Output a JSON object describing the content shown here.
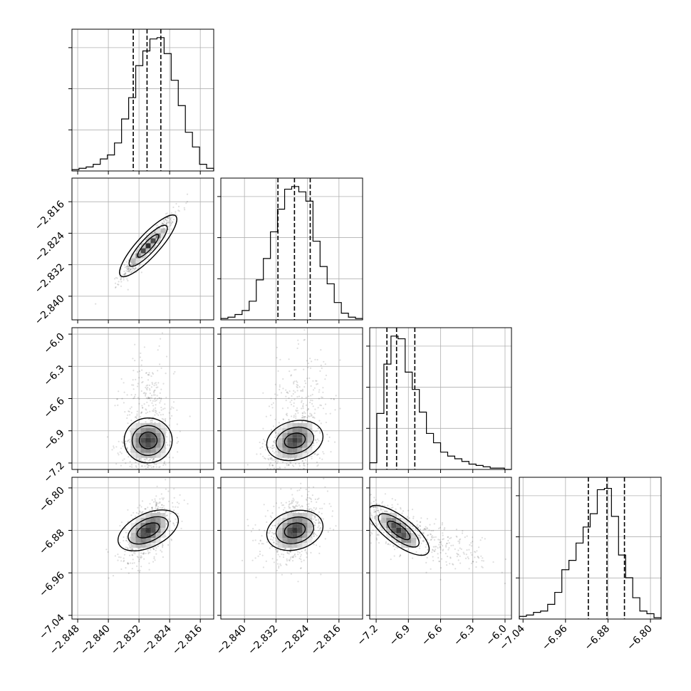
{
  "chart_data": {
    "type": "corner",
    "title": "",
    "grid": true,
    "parameters": [
      {
        "index": 0,
        "ticks": [
          "−2.848",
          "−2.840",
          "−2.832",
          "−2.824",
          "−2.816"
        ],
        "range": [
          -2.8495,
          -2.8125
        ],
        "q16": -2.8335,
        "q50": -2.8299,
        "q84": -2.8263,
        "mean": -2.8296,
        "sd": 0.0034
      },
      {
        "index": 1,
        "ticks": [
          "−2.840",
          "−2.832",
          "−2.824",
          "−2.816"
        ],
        "range": [
          -2.846,
          -2.81
        ],
        "q16": -2.8315,
        "q50": -2.8273,
        "q84": -2.8233,
        "mean": -2.8272,
        "sd": 0.004
      },
      {
        "index": 2,
        "ticks": [
          "−7.2",
          "−6.9",
          "−6.6",
          "−6.3",
          "−6.0"
        ],
        "range": [
          -7.26,
          -5.94
        ],
        "q16": -7.1,
        "q50": -7.01,
        "q84": -6.84,
        "mean": -6.99,
        "sd": 0.2
      },
      {
        "index": 3,
        "ticks": [
          "−7.04",
          "−6.96",
          "−6.88",
          "−6.80"
        ],
        "range": [
          -7.047,
          -6.78
        ],
        "q16": -6.917,
        "q50": -6.882,
        "q84": -6.849,
        "mean": -6.88,
        "sd": 0.03
      }
    ],
    "histograms": [
      {
        "param": 0,
        "bins": 20,
        "counts": [
          0.01,
          0.02,
          0.03,
          0.05,
          0.09,
          0.12,
          0.21,
          0.39,
          0.55,
          0.79,
          0.9,
          0.99,
          1.0,
          0.88,
          0.68,
          0.49,
          0.29,
          0.18,
          0.05,
          0.02
        ]
      },
      {
        "param": 1,
        "bins": 20,
        "counts": [
          0.01,
          0.02,
          0.04,
          0.07,
          0.14,
          0.3,
          0.46,
          0.66,
          0.83,
          0.98,
          1.0,
          0.96,
          0.89,
          0.59,
          0.4,
          0.27,
          0.13,
          0.05,
          0.02,
          0.01
        ]
      },
      {
        "param": 2,
        "bins": 20,
        "counts": [
          0.05,
          0.42,
          0.79,
          1.0,
          0.98,
          0.73,
          0.6,
          0.43,
          0.27,
          0.2,
          0.13,
          0.1,
          0.08,
          0.06,
          0.04,
          0.03,
          0.02,
          0.01,
          0.01,
          0
        ]
      },
      {
        "param": 3,
        "bins": 20,
        "counts": [
          0.02,
          0.03,
          0.05,
          0.06,
          0.11,
          0.2,
          0.37,
          0.44,
          0.57,
          0.69,
          0.79,
          0.97,
          0.98,
          0.77,
          0.48,
          0.31,
          0.16,
          0.06,
          0.04,
          0.01
        ]
      }
    ],
    "pairs": [
      {
        "x": 0,
        "y": 1,
        "correlation": 0.95
      },
      {
        "x": 0,
        "y": 2,
        "correlation": 0.05,
        "skew_y": "up"
      },
      {
        "x": 1,
        "y": 2,
        "correlation": 0.3,
        "skew_y": "up"
      },
      {
        "x": 0,
        "y": 3,
        "correlation": 0.5
      },
      {
        "x": 1,
        "y": 3,
        "correlation": 0.3
      },
      {
        "x": 2,
        "y": 3,
        "correlation": -0.75,
        "skew_x": "right"
      }
    ],
    "quantile_lines": [
      0.16,
      0.5,
      0.84
    ],
    "contour_levels": 3,
    "colors": {
      "axes": "#000000",
      "grid": "#b0b0b0",
      "points": "#000000",
      "contour": "#000000"
    }
  }
}
